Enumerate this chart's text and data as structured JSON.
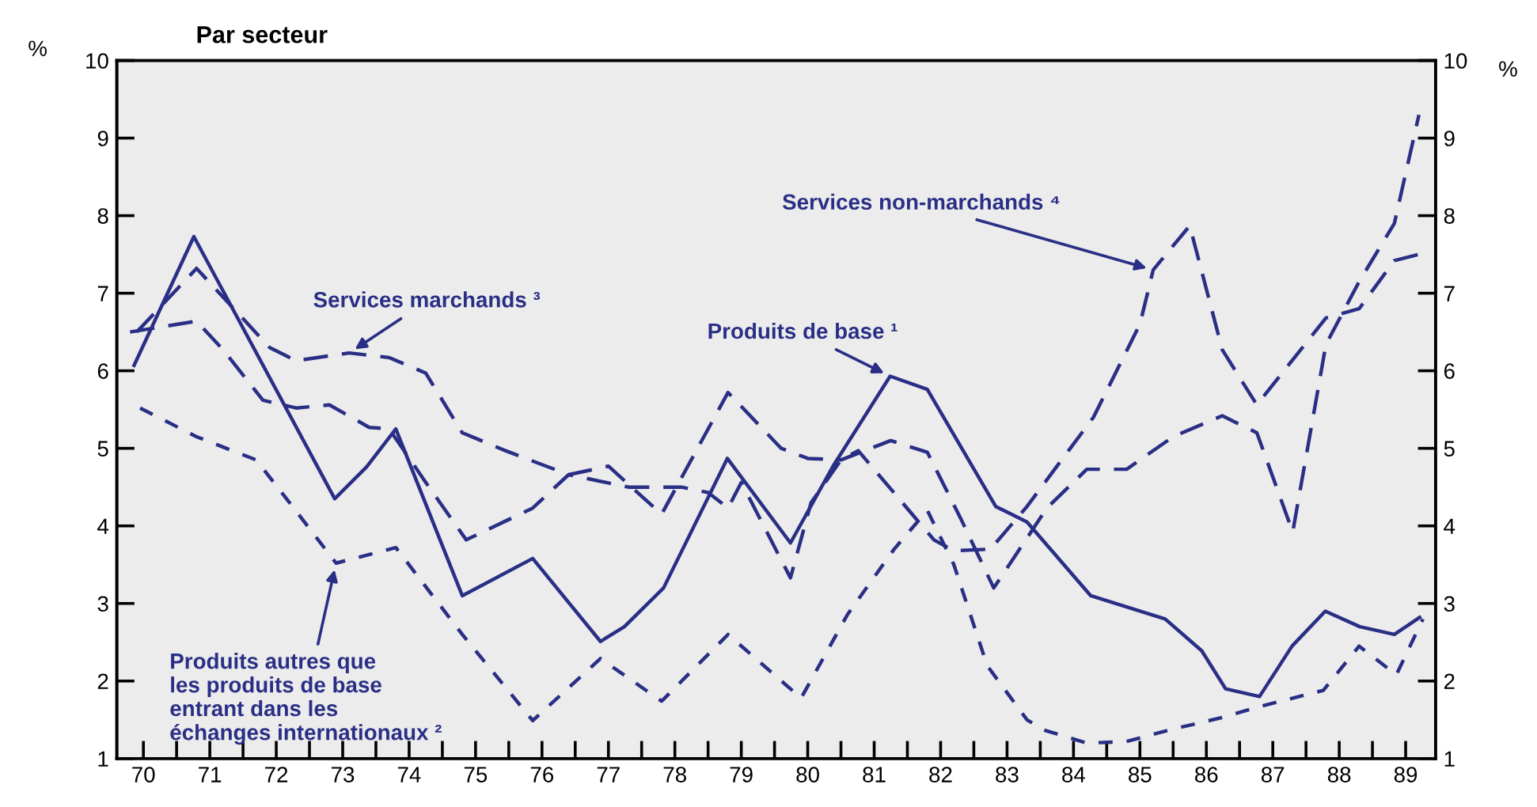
{
  "chart_data": {
    "type": "line",
    "title": "Par secteur",
    "ylabel": "%",
    "y2label": "%",
    "xlim": [
      69.6,
      89.45
    ],
    "ylim": [
      1,
      10
    ],
    "y2lim": [
      1,
      10
    ],
    "xticks": [
      {
        "value": 70,
        "label": "70"
      },
      {
        "value": 70.5,
        "label": null
      },
      {
        "value": 71,
        "label": "71"
      },
      {
        "value": 71.5,
        "label": null
      },
      {
        "value": 72,
        "label": "72"
      },
      {
        "value": 72.5,
        "label": null
      },
      {
        "value": 73,
        "label": "73"
      },
      {
        "value": 73.5,
        "label": null
      },
      {
        "value": 74,
        "label": "74"
      },
      {
        "value": 74.5,
        "label": null
      },
      {
        "value": 75,
        "label": "75"
      },
      {
        "value": 75.5,
        "label": null
      },
      {
        "value": 76,
        "label": "76"
      },
      {
        "value": 76.5,
        "label": null
      },
      {
        "value": 77,
        "label": "77"
      },
      {
        "value": 77.5,
        "label": null
      },
      {
        "value": 78,
        "label": "78"
      },
      {
        "value": 78.5,
        "label": null
      },
      {
        "value": 79,
        "label": "79"
      },
      {
        "value": 79.5,
        "label": null
      },
      {
        "value": 80,
        "label": "80"
      },
      {
        "value": 80.5,
        "label": null
      },
      {
        "value": 81,
        "label": "81"
      },
      {
        "value": 81.5,
        "label": null
      },
      {
        "value": 82,
        "label": "82"
      },
      {
        "value": 82.5,
        "label": null
      },
      {
        "value": 83,
        "label": "83"
      },
      {
        "value": 83.5,
        "label": null
      },
      {
        "value": 84,
        "label": "84"
      },
      {
        "value": 84.5,
        "label": null
      },
      {
        "value": 85,
        "label": "85"
      },
      {
        "value": 85.5,
        "label": null
      },
      {
        "value": 86,
        "label": "86"
      },
      {
        "value": 86.5,
        "label": null
      },
      {
        "value": 87,
        "label": "87"
      },
      {
        "value": 87.5,
        "label": null
      },
      {
        "value": 88,
        "label": "88"
      },
      {
        "value": 88.5,
        "label": null
      },
      {
        "value": 89,
        "label": "89"
      }
    ],
    "yticks": [
      1,
      2,
      3,
      4,
      5,
      6,
      7,
      8,
      9,
      10
    ],
    "y2ticks": [
      1,
      2,
      3,
      4,
      5,
      6,
      7,
      8,
      9,
      10
    ],
    "grid": false,
    "legend": false,
    "marker": "none",
    "series": [
      {
        "name": "Produits de base ¹",
        "color": "#2a2f86",
        "line_style": "solid",
        "x": [
          69.86,
          70.76,
          72.88,
          73.36,
          73.8,
          74.8,
          75.86,
          76.88,
          77.24,
          77.83,
          78.79,
          79.74,
          80.38,
          81.24,
          81.8,
          82.83,
          83.3,
          84.26,
          85.38,
          85.93,
          86.29,
          86.8,
          87.29,
          87.79,
          88.31,
          88.83,
          89.21
        ],
        "values": [
          6.07,
          7.73,
          4.35,
          4.76,
          5.25,
          3.1,
          3.58,
          2.51,
          2.7,
          3.2,
          4.87,
          3.78,
          4.77,
          5.93,
          5.76,
          4.25,
          4.05,
          3.1,
          2.8,
          2.39,
          1.9,
          1.8,
          2.45,
          2.9,
          2.7,
          2.6,
          2.82
        ]
      },
      {
        "name": "Produits autres que\nles produits de base\nentrant dans les\néchanges internationaux ²",
        "color": "#2a2f86",
        "line_style": "dotted",
        "x": [
          69.95,
          70.8,
          71.7,
          72.2,
          72.9,
          73.8,
          74.8,
          75.86,
          76.88,
          77.8,
          78.8,
          79.9,
          80.6,
          81.3,
          81.8,
          82.2,
          82.7,
          83.3,
          83.55,
          84.2,
          84.8,
          85.45,
          86.24,
          86.8,
          87.76,
          88.3,
          88.86,
          89.26
        ],
        "values": [
          5.52,
          5.15,
          4.85,
          4.3,
          3.52,
          3.72,
          2.6,
          1.49,
          2.29,
          1.74,
          2.6,
          1.78,
          2.86,
          3.7,
          4.2,
          3.5,
          2.2,
          1.5,
          1.37,
          1.2,
          1.22,
          1.37,
          1.53,
          1.67,
          1.88,
          2.45,
          2.08,
          2.8
        ]
      },
      {
        "name": "Services marchands ³",
        "color": "#2a2f86",
        "line_style": "dashed",
        "x": [
          69.9,
          70.8,
          71.9,
          72.3,
          73.1,
          73.7,
          74.25,
          74.8,
          75.45,
          76.4,
          77.0,
          77.8,
          78.8,
          79.6,
          80.0,
          80.5,
          81.25,
          81.8,
          82.3,
          82.8,
          83.6,
          84.2,
          84.8,
          85.5,
          86.24,
          86.76,
          87.3,
          87.8,
          88.3,
          88.83,
          89.2
        ],
        "values": [
          6.5,
          7.32,
          6.3,
          6.13,
          6.23,
          6.17,
          5.97,
          5.2,
          4.97,
          4.66,
          4.77,
          4.15,
          5.72,
          5.0,
          4.87,
          4.85,
          5.1,
          4.95,
          4.1,
          3.2,
          4.23,
          4.73,
          4.73,
          5.15,
          5.42,
          5.2,
          3.92,
          6.34,
          7.15,
          7.9,
          9.3
        ]
      },
      {
        "name": "Services non-marchands ⁴",
        "color": "#2a2f86",
        "line_style": "dashed",
        "x": [
          69.8,
          70.8,
          71.2,
          71.8,
          72.3,
          72.8,
          73.4,
          73.7,
          74.25,
          74.86,
          75.86,
          76.4,
          77.3,
          78.1,
          78.5,
          78.8,
          79.0,
          79.74,
          80.05,
          80.5,
          80.76,
          81.9,
          82.2,
          82.75,
          83.3,
          84.3,
          85.0,
          85.2,
          85.75,
          86.24,
          86.76,
          87.8,
          88.3,
          88.83,
          89.2
        ],
        "values": [
          6.5,
          6.64,
          6.27,
          5.62,
          5.52,
          5.56,
          5.27,
          5.25,
          4.56,
          3.82,
          4.23,
          4.66,
          4.5,
          4.5,
          4.43,
          4.23,
          4.56,
          3.33,
          4.3,
          4.85,
          4.97,
          3.82,
          3.68,
          3.7,
          4.25,
          5.4,
          6.6,
          7.3,
          7.87,
          6.27,
          5.56,
          6.68,
          6.8,
          7.42,
          7.5
        ]
      }
    ]
  }
}
